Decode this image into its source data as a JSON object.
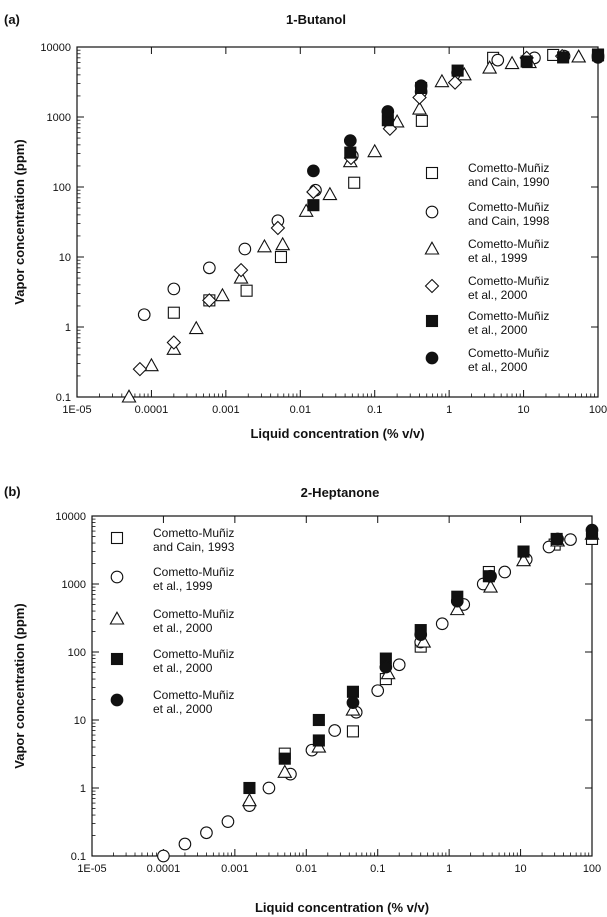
{
  "chart_data": [
    {
      "panel": "(a)",
      "title": "1-Butanol",
      "type": "scatter",
      "xlabel": "Liquid concentration (% v/v)",
      "ylabel": "Vapor concentration (ppm)",
      "xscale": "log",
      "yscale": "log",
      "xlim": [
        1e-05,
        100
      ],
      "ylim": [
        0.1,
        10000
      ],
      "xticks": [
        "1E-05",
        "0.0001",
        "0.001",
        "0.01",
        "0.1",
        "1",
        "10",
        "100"
      ],
      "yticks": [
        "0.1",
        "1",
        "10",
        "100",
        "1000",
        "10000"
      ],
      "legend_position": "right",
      "series": [
        {
          "name": "Cometto-Muñiz\nand Cain, 1990",
          "marker": "square-open",
          "points": [
            [
              0.0002,
              1.6
            ],
            [
              0.0006,
              2.4
            ],
            [
              0.0019,
              3.3
            ],
            [
              0.0055,
              10
            ],
            [
              0.053,
              115
            ],
            [
              0.43,
              880
            ],
            [
              3.9,
              7000
            ],
            [
              25,
              7700
            ],
            [
              100,
              7800
            ]
          ]
        },
        {
          "name": "Cometto-Muñiz\nand Cain, 1998",
          "marker": "circle-open",
          "points": [
            [
              8e-05,
              1.5
            ],
            [
              0.0002,
              3.5
            ],
            [
              0.0006,
              7
            ],
            [
              0.0018,
              13
            ],
            [
              0.005,
              33
            ],
            [
              0.016,
              90
            ],
            [
              0.05,
              280
            ],
            [
              0.16,
              800
            ],
            [
              0.42,
              2300
            ],
            [
              1.3,
              4300
            ],
            [
              4.5,
              6500
            ],
            [
              14,
              7000
            ],
            [
              35,
              7400
            ],
            [
              100,
              7600
            ]
          ]
        },
        {
          "name": "Cometto-Muñiz\net al., 1999",
          "marker": "triangle-open",
          "points": [
            [
              5e-05,
              0.1
            ],
            [
              0.0001,
              0.28
            ],
            [
              0.0002,
              0.48
            ],
            [
              0.0004,
              0.95
            ],
            [
              0.0009,
              2.8
            ],
            [
              0.0016,
              5
            ],
            [
              0.0033,
              14
            ],
            [
              0.0058,
              15
            ],
            [
              0.012,
              45
            ],
            [
              0.025,
              78
            ],
            [
              0.047,
              230
            ],
            [
              0.1,
              320
            ],
            [
              0.2,
              850
            ],
            [
              0.4,
              1300
            ],
            [
              0.8,
              3200
            ],
            [
              1.6,
              4000
            ],
            [
              3.5,
              5000
            ],
            [
              7,
              5800
            ],
            [
              12,
              6000
            ],
            [
              55,
              7200
            ]
          ]
        },
        {
          "name": "Cometto-Muñiz\net al., 2000",
          "marker": "diamond-open",
          "points": [
            [
              7e-05,
              0.25
            ],
            [
              0.0002,
              0.6
            ],
            [
              0.0006,
              2.4
            ],
            [
              0.0016,
              6.5
            ],
            [
              0.005,
              26
            ],
            [
              0.015,
              85
            ],
            [
              0.048,
              260
            ],
            [
              0.16,
              680
            ],
            [
              0.4,
              1900
            ],
            [
              1.2,
              3100
            ],
            [
              11,
              7000
            ],
            [
              33,
              7400
            ]
          ]
        },
        {
          "name": "Cometto-Muñiz\net al., 2000",
          "marker": "square-filled",
          "points": [
            [
              0.015,
              55
            ],
            [
              0.047,
              310
            ],
            [
              0.15,
              900
            ],
            [
              0.42,
              2600
            ],
            [
              1.3,
              4600
            ],
            [
              11,
              6200
            ],
            [
              34,
              7100
            ],
            [
              100,
              7600
            ]
          ]
        },
        {
          "name": "Cometto-Muñiz\net al., 2000",
          "marker": "circle-filled",
          "points": [
            [
              0.015,
              170
            ],
            [
              0.047,
              460
            ],
            [
              0.15,
              1200
            ],
            [
              0.42,
              2800
            ],
            [
              100,
              7100
            ]
          ]
        }
      ]
    },
    {
      "panel": "(b)",
      "title": "2-Heptanone",
      "type": "scatter",
      "xlabel": "Liquid concentration (% v/v)",
      "ylabel": "Vapor concentration (ppm)",
      "xscale": "log",
      "yscale": "log",
      "xlim": [
        1e-05,
        100
      ],
      "ylim": [
        0.1,
        10000
      ],
      "xticks": [
        "1E-05",
        "0.0001",
        "0.001",
        "0.01",
        "0.1",
        "1",
        "10",
        "100"
      ],
      "yticks": [
        "0.1",
        "1",
        "10",
        "100",
        "1000",
        "10000"
      ],
      "legend_position": "top-left",
      "series": [
        {
          "name": "Cometto-Muñiz\nand Cain, 1993",
          "marker": "square-open",
          "points": [
            [
              0.005,
              3.2
            ],
            [
              0.045,
              6.8
            ],
            [
              0.13,
              40
            ],
            [
              0.4,
              120
            ],
            [
              3.6,
              1500
            ],
            [
              30,
              3800
            ],
            [
              100,
              4600
            ]
          ]
        },
        {
          "name": "Cometto-Muñiz\net al., 1999",
          "marker": "circle-open",
          "points": [
            [
              0.0001,
              0.1
            ],
            [
              0.0002,
              0.15
            ],
            [
              0.0004,
              0.22
            ],
            [
              0.0008,
              0.32
            ],
            [
              0.0016,
              0.55
            ],
            [
              0.003,
              1
            ],
            [
              0.006,
              1.6
            ],
            [
              0.012,
              3.6
            ],
            [
              0.025,
              7
            ],
            [
              0.05,
              13
            ],
            [
              0.1,
              27
            ],
            [
              0.2,
              65
            ],
            [
              0.4,
              140
            ],
            [
              0.8,
              260
            ],
            [
              1.6,
              500
            ],
            [
              3,
              1000
            ],
            [
              6,
              1500
            ],
            [
              12,
              2300
            ],
            [
              25,
              3500
            ],
            [
              50,
              4500
            ]
          ]
        },
        {
          "name": "Cometto-Muñiz\net al., 2000",
          "marker": "triangle-open",
          "points": [
            [
              0.0016,
              0.65
            ],
            [
              0.005,
              1.7
            ],
            [
              0.015,
              4
            ],
            [
              0.045,
              14
            ],
            [
              0.14,
              48
            ],
            [
              0.44,
              140
            ],
            [
              1.3,
              420
            ],
            [
              3.8,
              900
            ],
            [
              11,
              2200
            ],
            [
              33,
              4300
            ],
            [
              100,
              5400
            ]
          ]
        },
        {
          "name": "Cometto-Muñiz\net al., 2000",
          "marker": "square-filled",
          "points": [
            [
              0.0016,
              1
            ],
            [
              0.005,
              2.7
            ],
            [
              0.015,
              10
            ],
            [
              0.015,
              5
            ],
            [
              0.045,
              26
            ],
            [
              0.13,
              80
            ],
            [
              0.4,
              210
            ],
            [
              1.3,
              650
            ],
            [
              3.6,
              1300
            ],
            [
              11,
              3000
            ],
            [
              32,
              4600
            ],
            [
              100,
              5500
            ]
          ]
        },
        {
          "name": "Cometto-Muñiz\net al., 2000",
          "marker": "circle-filled",
          "points": [
            [
              0.045,
              18
            ],
            [
              0.13,
              60
            ],
            [
              0.4,
              180
            ],
            [
              1.3,
              560
            ],
            [
              3.8,
              1300
            ],
            [
              33,
              4600
            ],
            [
              100,
              6200
            ]
          ]
        }
      ]
    }
  ]
}
